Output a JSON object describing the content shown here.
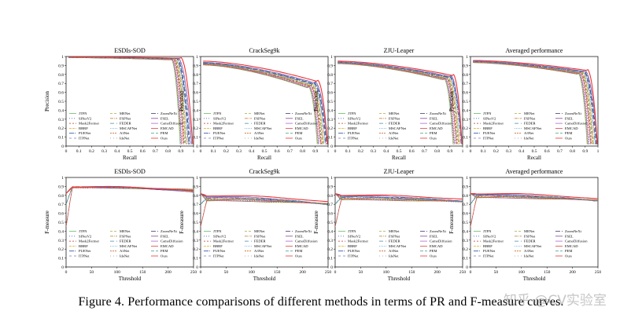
{
  "caption": "Figure 4. Performance comparisons of different methods in terms of PR and F-measure curves.",
  "watermark": "知乎 @CV实验室",
  "legend_labels": [
    "JTFN",
    "MENet",
    "ZoomNeXt",
    "SINetV2",
    "FSPNet",
    "FSEL",
    "Mask2Former",
    "FEDER",
    "CamoDiffusion",
    "BBRF",
    "MSCAFNet",
    "EMCAD",
    "PUENet",
    "A3Net",
    "PEM",
    "ITPNet",
    "IdeNet",
    "Ours"
  ],
  "colors": [
    "#66bb66",
    "#aaaa44",
    "#333366",
    "#4466cc",
    "#cc8844",
    "#884499",
    "#bb3333",
    "#4488aa",
    "#aa66cc",
    "#ddaa22",
    "#66aadd",
    "#dd4444",
    "#3355aa",
    "#cc6622",
    "#55aa88",
    "#7777cc",
    "#999999",
    "#ee3333"
  ],
  "chart_data": [
    {
      "type": "line",
      "kind": "pr",
      "title": "ESDIs-SOD",
      "xlabel": "Recall",
      "ylabel": "Precision",
      "xlim": [
        0,
        1
      ],
      "ylim": [
        0,
        1
      ],
      "xticks": [
        "0",
        "0.1",
        "0.2",
        "0.3",
        "0.4",
        "0.5",
        "0.6",
        "0.7",
        "0.8",
        "0.9",
        "1"
      ],
      "yticks": [
        "0",
        "0.1",
        "0.2",
        "0.3",
        "0.4",
        "0.5",
        "0.6",
        "0.7",
        "0.8",
        "0.9",
        "1"
      ],
      "y0": 0.99,
      "y1": 0.97,
      "knee": 0.84,
      "spread": 0.015
    },
    {
      "type": "line",
      "kind": "pr",
      "title": "CrackSeg9k",
      "xlabel": "Recall",
      "ylabel": "Precision",
      "xlim": [
        0,
        1
      ],
      "ylim": [
        0,
        1
      ],
      "xticks": [
        "0",
        "0.1",
        "0.2",
        "0.3",
        "0.4",
        "0.5",
        "0.6",
        "0.7",
        "0.8",
        "0.9",
        "1"
      ],
      "yticks": [
        "0",
        "0.1",
        "0.2",
        "0.3",
        "0.4",
        "0.5",
        "0.6",
        "0.7",
        "0.8",
        "0.9",
        "1"
      ],
      "y0": 0.92,
      "y1": 0.68,
      "knee": 0.86,
      "spread": 0.06
    },
    {
      "type": "line",
      "kind": "pr",
      "title": "ZJU-Leaper",
      "xlabel": "Recall",
      "ylabel": "Precision",
      "xlim": [
        0,
        1
      ],
      "ylim": [
        0,
        1
      ],
      "xticks": [
        "0",
        "0.1",
        "0.2",
        "0.3",
        "0.4",
        "0.5",
        "0.6",
        "0.7",
        "0.8",
        "0.9",
        "1"
      ],
      "yticks": [
        "0",
        "0.1",
        "0.2",
        "0.3",
        "0.4",
        "0.5",
        "0.6",
        "0.7",
        "0.8",
        "0.9",
        "1"
      ],
      "y0": 0.93,
      "y1": 0.76,
      "knee": 0.87,
      "spread": 0.04
    },
    {
      "type": "line",
      "kind": "pr",
      "title": "Averaged performance",
      "xlabel": "Recall",
      "ylabel": "Precision",
      "xlim": [
        0,
        1
      ],
      "ylim": [
        0,
        1
      ],
      "xticks": [
        "0",
        "0.1",
        "0.2",
        "0.3",
        "0.4",
        "0.5",
        "0.6",
        "0.7",
        "0.8",
        "0.9",
        "1"
      ],
      "yticks": [
        "0",
        "0.1",
        "0.2",
        "0.3",
        "0.4",
        "0.5",
        "0.6",
        "0.7",
        "0.8",
        "0.9",
        "1"
      ],
      "y0": 0.94,
      "y1": 0.82,
      "knee": 0.86,
      "spread": 0.035
    },
    {
      "type": "line",
      "kind": "fm",
      "title": "ESDIs-SOD",
      "xlabel": "Threshold",
      "ylabel": "F-measure",
      "xlim": [
        0,
        250
      ],
      "ylim": [
        0,
        1
      ],
      "xticks": [
        "0",
        "50",
        "100",
        "150",
        "200",
        "250"
      ],
      "yticks": [
        "0",
        "0.1",
        "0.2",
        "0.3",
        "0.4",
        "0.5",
        "0.6",
        "0.7",
        "0.8",
        "0.9",
        "1"
      ],
      "base": 0.89,
      "spread": 0.012,
      "drop": 0.04
    },
    {
      "type": "line",
      "kind": "fm",
      "title": "CrackSeg9k",
      "xlabel": "Threshold",
      "ylabel": "F-measure",
      "xlim": [
        0,
        250
      ],
      "ylim": [
        0,
        1
      ],
      "xticks": [
        "0",
        "50",
        "100",
        "150",
        "200",
        "250"
      ],
      "yticks": [
        "0",
        "0.1",
        "0.2",
        "0.3",
        "0.4",
        "0.5",
        "0.6",
        "0.7",
        "0.8",
        "0.9",
        "1"
      ],
      "base": 0.76,
      "spread": 0.05,
      "drop": 0.06
    },
    {
      "type": "line",
      "kind": "fm",
      "title": "ZJU-Leaper",
      "xlabel": "Threshold",
      "ylabel": "F-measure",
      "xlim": [
        0,
        250
      ],
      "ylim": [
        0,
        1
      ],
      "xticks": [
        "0",
        "50",
        "100",
        "150",
        "200",
        "250"
      ],
      "yticks": [
        "0",
        "0.1",
        "0.2",
        "0.3",
        "0.4",
        "0.5",
        "0.6",
        "0.7",
        "0.8",
        "0.9",
        "1"
      ],
      "base": 0.77,
      "spread": 0.045,
      "drop": 0.04
    },
    {
      "type": "line",
      "kind": "fm",
      "title": "Averaged performance",
      "xlabel": "Threshold",
      "ylabel": "F-measure",
      "xlim": [
        0,
        250
      ],
      "ylim": [
        0,
        1
      ],
      "xticks": [
        "0",
        "50",
        "100",
        "150",
        "200",
        "250"
      ],
      "yticks": [
        "0",
        "0.1",
        "0.2",
        "0.3",
        "0.4",
        "0.5",
        "0.6",
        "0.7",
        "0.8",
        "0.9",
        "1"
      ],
      "base": 0.79,
      "spread": 0.04,
      "drop": 0.05
    }
  ]
}
